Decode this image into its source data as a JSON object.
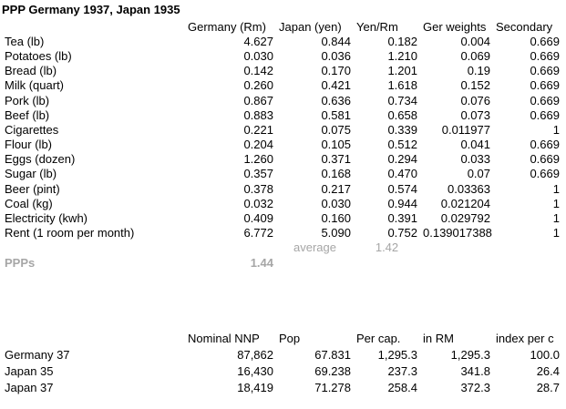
{
  "title": "PPP Germany 1937, Japan 1935",
  "colors": {
    "muted_text": "#a6a6a6",
    "text": "#000000",
    "background": "#ffffff"
  },
  "price_table": {
    "headers": [
      "Germany (Rm)",
      "Japan (yen)",
      "Yen/Rm",
      "Ger weights",
      "Secondary"
    ],
    "rows": [
      {
        "label": "Tea (lb)",
        "values": [
          "4.627",
          "0.844",
          "0.182",
          "0.004",
          "0.669"
        ]
      },
      {
        "label": "Potatoes (lb)",
        "values": [
          "0.030",
          "0.036",
          "1.210",
          "0.069",
          "0.669"
        ]
      },
      {
        "label": "Bread (lb)",
        "values": [
          "0.142",
          "0.170",
          "1.201",
          "0.19",
          "0.669"
        ]
      },
      {
        "label": "Milk (quart)",
        "values": [
          "0.260",
          "0.421",
          "1.618",
          "0.152",
          "0.669"
        ]
      },
      {
        "label": "Pork (lb)",
        "values": [
          "0.867",
          "0.636",
          "0.734",
          "0.076",
          "0.669"
        ]
      },
      {
        "label": "Beef (lb)",
        "values": [
          "0.883",
          "0.581",
          "0.658",
          "0.073",
          "0.669"
        ]
      },
      {
        "label": "Cigarettes",
        "values": [
          "0.221",
          "0.075",
          "0.339",
          "0.011977",
          "1"
        ]
      },
      {
        "label": "Flour (lb)",
        "values": [
          "0.204",
          "0.105",
          "0.512",
          "0.041",
          "0.669"
        ]
      },
      {
        "label": "Eggs (dozen)",
        "values": [
          "1.260",
          "0.371",
          "0.294",
          "0.033",
          "0.669"
        ]
      },
      {
        "label": "Sugar (lb)",
        "values": [
          "0.357",
          "0.168",
          "0.470",
          "0.07",
          "0.669"
        ]
      },
      {
        "label": "Beer (pint)",
        "values": [
          "0.378",
          "0.217",
          "0.574",
          "0.03363",
          "1"
        ]
      },
      {
        "label": "Coal (kg)",
        "values": [
          "0.032",
          "0.030",
          "0.944",
          "0.021204",
          "1"
        ]
      },
      {
        "label": "Electricity (kwh)",
        "values": [
          "0.409",
          "0.160",
          "0.391",
          "0.029792",
          "1"
        ]
      },
      {
        "label": "Rent (1 room per month)",
        "values": [
          "6.772",
          "5.090",
          "0.752",
          "0.139017388",
          "1"
        ]
      }
    ],
    "average_label": "average",
    "average_value": "1.42",
    "ppps_label": "PPPs",
    "ppps_value": "1.44"
  },
  "nnp_table": {
    "headers": [
      "Nominal NNP",
      "Pop",
      "Per cap.",
      "in RM",
      "index per c"
    ],
    "rows": [
      {
        "label": "Germany 37",
        "values": [
          "87,862",
          "67.831",
          "1,295.3",
          "1,295.3",
          "100.0"
        ]
      },
      {
        "label": "Japan 35",
        "values": [
          "16,430",
          "69.238",
          "237.3",
          "341.8",
          "26.4"
        ]
      },
      {
        "label": "Japan 37",
        "values": [
          "18,419",
          "71.278",
          "258.4",
          "372.3",
          "28.7"
        ]
      }
    ]
  }
}
